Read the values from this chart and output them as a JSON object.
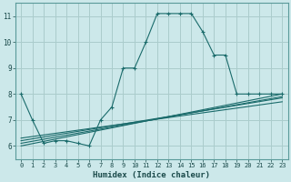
{
  "xlabel": "Humidex (Indice chaleur)",
  "bg_color": "#cce8ea",
  "grid_color": "#aacccc",
  "line_color": "#1a6b6b",
  "xlim": [
    -0.5,
    23.5
  ],
  "ylim": [
    5.5,
    11.5
  ],
  "xticks": [
    0,
    1,
    2,
    3,
    4,
    5,
    6,
    7,
    8,
    9,
    10,
    11,
    12,
    13,
    14,
    15,
    16,
    17,
    18,
    19,
    20,
    21,
    22,
    23
  ],
  "yticks": [
    6,
    7,
    8,
    9,
    10,
    11
  ],
  "main_x": [
    0,
    1,
    2,
    3,
    4,
    5,
    6,
    7,
    8,
    9,
    10,
    11,
    12,
    13,
    14,
    15,
    16,
    17,
    18,
    19,
    20,
    21,
    22,
    23
  ],
  "main_y": [
    8.0,
    7.0,
    6.1,
    6.2,
    6.2,
    6.1,
    6.0,
    7.0,
    7.5,
    9.0,
    9.0,
    10.0,
    11.1,
    11.1,
    11.1,
    11.1,
    10.4,
    9.5,
    9.5,
    8.0,
    8.0,
    8.0,
    8.0,
    8.0
  ],
  "line2_x": [
    0,
    23
  ],
  "line2_y": [
    6.0,
    8.0
  ],
  "line3_x": [
    0,
    23
  ],
  "line3_y": [
    6.1,
    7.9
  ],
  "line4_x": [
    0,
    23
  ],
  "line4_y": [
    6.2,
    7.85
  ],
  "line5_x": [
    0,
    23
  ],
  "line5_y": [
    6.3,
    7.7
  ]
}
